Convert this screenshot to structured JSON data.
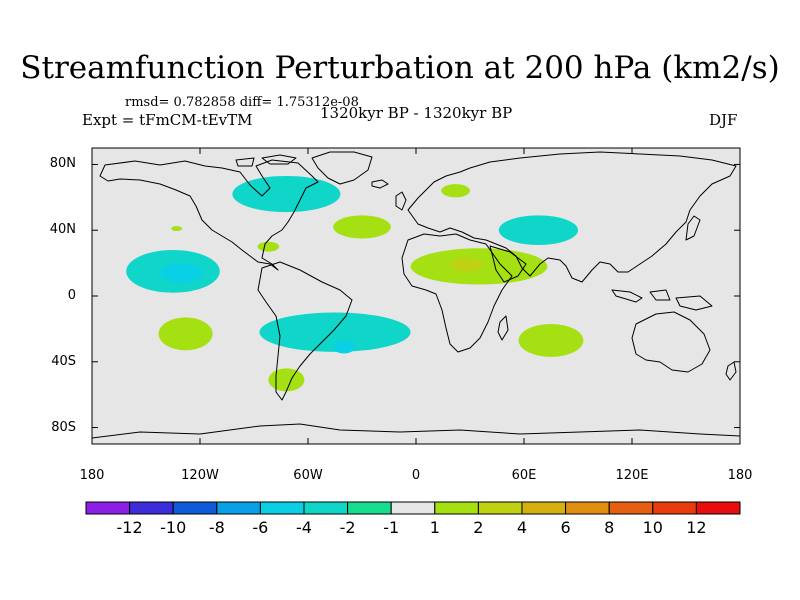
{
  "title": "Streamfunction Perturbation at 200 hPa (km2/s)",
  "subtitle_stats": "rmsd= 0.782858 diff= 1.75312e-08",
  "subtitle_expt": "Expt = tFmCM-tEvTM",
  "subtitle_period": "1320kyr BP - 1320kyr BP",
  "season": "DJF",
  "map": {
    "lon_range": [
      -180,
      180
    ],
    "lat_range": [
      -90,
      90
    ],
    "lat_labels": [
      "80N",
      "40N",
      "0",
      "40S",
      "80S"
    ],
    "lat_values": [
      80,
      40,
      0,
      -40,
      -80
    ],
    "lon_labels": [
      "180",
      "120W",
      "60W",
      "0",
      "60E",
      "120E",
      "180"
    ],
    "lon_values": [
      -180,
      -120,
      -60,
      0,
      60,
      120,
      180
    ],
    "background_color": "#e6e6e6",
    "coastline_color": "#000000"
  },
  "anomalies": [
    {
      "name": "north-america-negative",
      "lon": -72,
      "lat": 62,
      "rlon": 30,
      "rlat": 11,
      "level": "-2"
    },
    {
      "name": "north-atlantic-positive",
      "lon": -30,
      "lat": 42,
      "rlon": 16,
      "rlat": 7,
      "level": "2"
    },
    {
      "name": "scandinavia-positive",
      "lon": 22,
      "lat": 64,
      "rlon": 8,
      "rlat": 4,
      "level": "2"
    },
    {
      "name": "central-asia-negative",
      "lon": 68,
      "lat": 40,
      "rlon": 22,
      "rlat": 9,
      "level": "-2"
    },
    {
      "name": "north-africa-positive",
      "lon": 35,
      "lat": 18,
      "rlon": 38,
      "rlat": 11,
      "level": "2"
    },
    {
      "name": "north-africa-core",
      "lon": 28,
      "lat": 19,
      "rlon": 9,
      "rlat": 4,
      "level": "4"
    },
    {
      "name": "north-pacific-negative",
      "lon": -135,
      "lat": 15,
      "rlon": 26,
      "rlat": 13,
      "level": "-2"
    },
    {
      "name": "north-pacific-core",
      "lon": -130,
      "lat": 14,
      "rlon": 12,
      "rlat": 6,
      "level": "-4"
    },
    {
      "name": "gulf-small-positive",
      "lon": -82,
      "lat": 30,
      "rlon": 6,
      "rlat": 3,
      "level": "2"
    },
    {
      "name": "north-pacific-small-positive",
      "lon": -133,
      "lat": 41,
      "rlon": 3,
      "rlat": 1.5,
      "level": "2"
    },
    {
      "name": "south-pacific-positive",
      "lon": -128,
      "lat": -23,
      "rlon": 15,
      "rlat": 10,
      "level": "2"
    },
    {
      "name": "south-atlantic-negative",
      "lon": -45,
      "lat": -22,
      "rlon": 42,
      "rlat": 12,
      "level": "-2"
    },
    {
      "name": "south-atlantic-core",
      "lon": -40,
      "lat": -31,
      "rlon": 6,
      "rlat": 4,
      "level": "-4"
    },
    {
      "name": "indian-ocean-positive",
      "lon": 75,
      "lat": -27,
      "rlon": 18,
      "rlat": 10,
      "level": "2"
    },
    {
      "name": "patagonia-positive",
      "lon": -72,
      "lat": -51,
      "rlon": 10,
      "rlat": 7,
      "level": "2"
    }
  ],
  "colorbar": {
    "colors": [
      "#8b1fe6",
      "#3c2cd9",
      "#0f5ad8",
      "#0aa0e6",
      "#0ad0e6",
      "#0fd6c8",
      "#18dd8f",
      "#e6e6e6",
      "#a5e012",
      "#c0d012",
      "#d4b010",
      "#e09010",
      "#e46010",
      "#e83c0c",
      "#e80e0e"
    ],
    "labels": [
      "-12",
      "-10",
      "-8",
      "-6",
      "-4",
      "-2",
      "-1",
      "1",
      "2",
      "4",
      "6",
      "8",
      "10",
      "12"
    ]
  }
}
